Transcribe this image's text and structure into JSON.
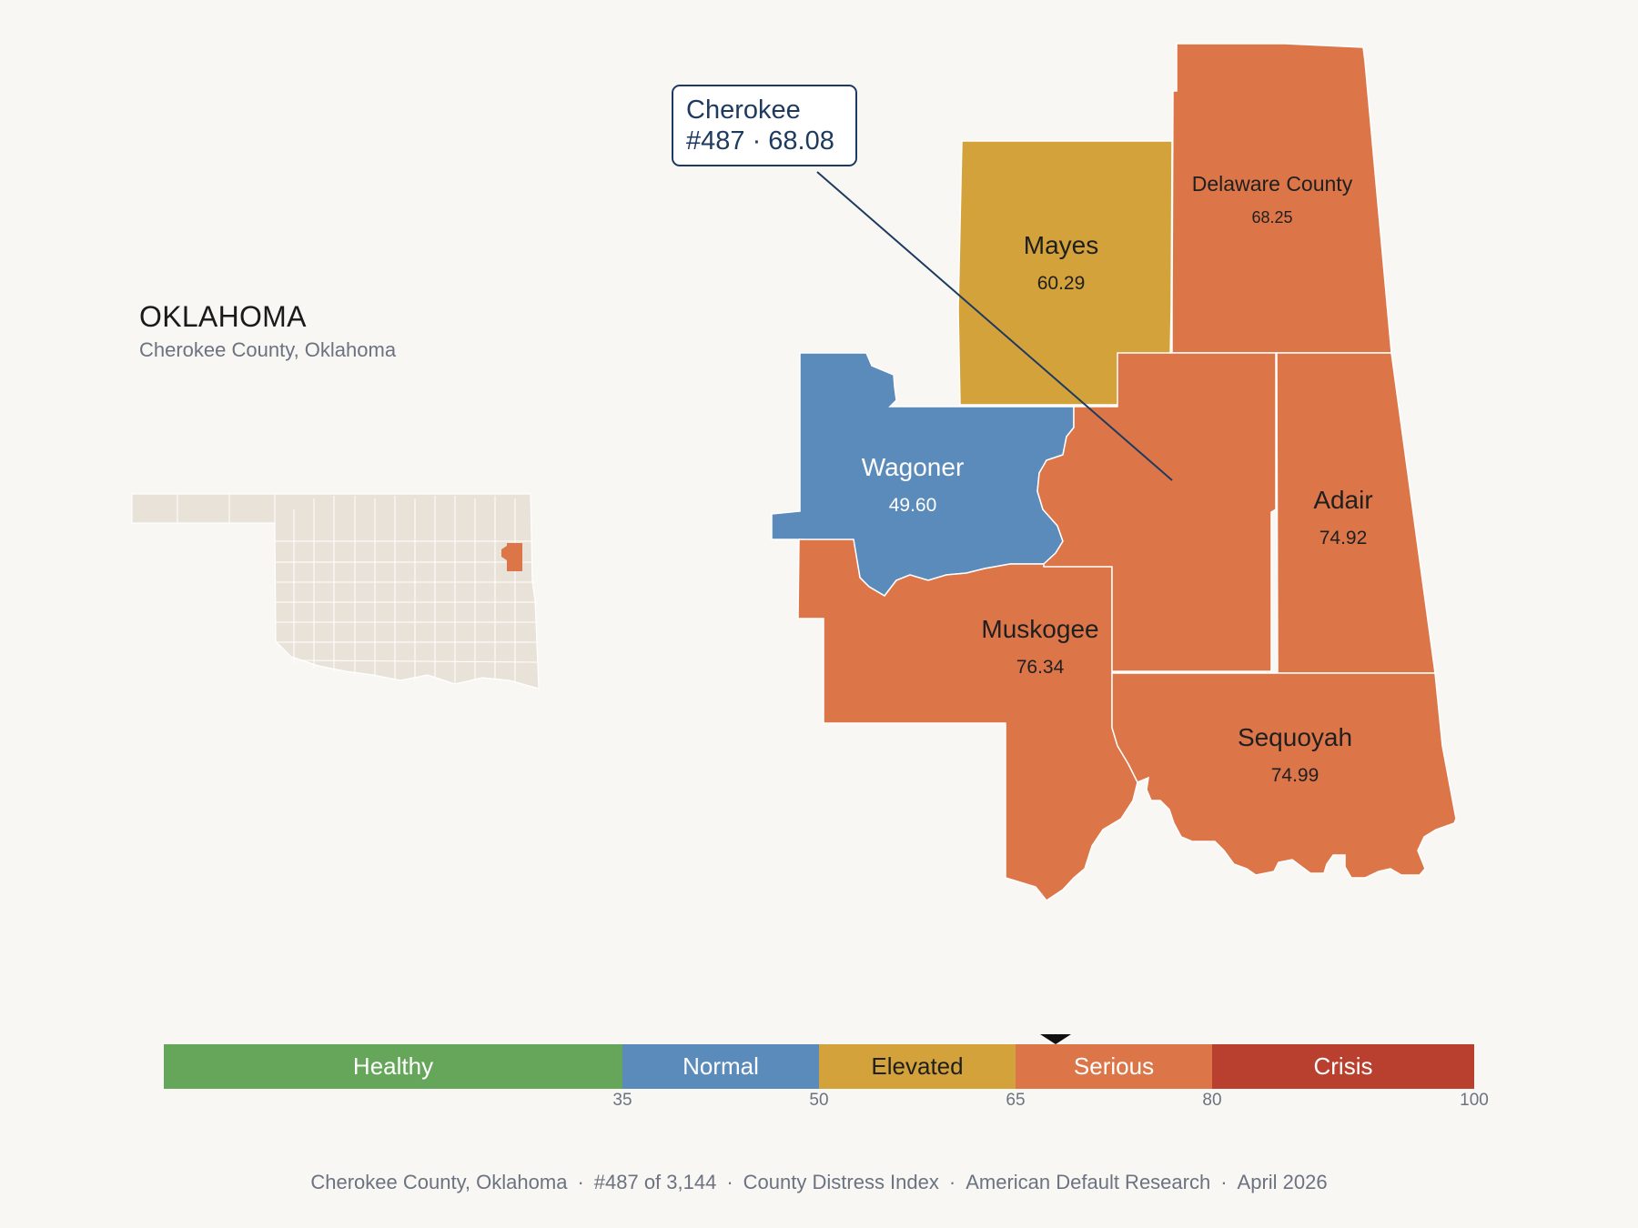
{
  "header": {
    "state": "OKLAHOMA",
    "subtitle": "Cherokee County, Oklahoma"
  },
  "callout": {
    "name": "Cherokee",
    "detail": "#487 · 68.08"
  },
  "counties": [
    {
      "name": "Cherokee",
      "value": "68.08",
      "category": "Serious",
      "highlighted": true
    },
    {
      "name": "Mayes",
      "value": "60.29",
      "category": "Elevated"
    },
    {
      "name": "Delaware County",
      "value": "68.25",
      "category": "Serious"
    },
    {
      "name": "Wagoner",
      "value": "49.60",
      "category": "Normal"
    },
    {
      "name": "Adair",
      "value": "74.92",
      "category": "Serious"
    },
    {
      "name": "Muskogee",
      "value": "76.34",
      "category": "Serious"
    },
    {
      "name": "Sequoyah",
      "value": "74.99",
      "category": "Serious"
    }
  ],
  "legend": {
    "segments": [
      {
        "label": "Healthy",
        "from": 0,
        "to": 35,
        "color": "#66a65a"
      },
      {
        "label": "Normal",
        "from": 35,
        "to": 50,
        "color": "#5b8bba"
      },
      {
        "label": "Elevated",
        "from": 50,
        "to": 65,
        "color": "#d4a23a"
      },
      {
        "label": "Serious",
        "from": 65,
        "to": 80,
        "color": "#dc7649"
      },
      {
        "label": "Crisis",
        "from": 80,
        "to": 100,
        "color": "#b9402e"
      }
    ],
    "ticks": [
      "35",
      "50",
      "65",
      "80",
      "100"
    ],
    "marker_value": 68.08
  },
  "colors": {
    "background": "#f9f7f4",
    "accent": "#1e3a5f",
    "inset_fill": "#e8e2d8",
    "inset_highlight": "#dc7649"
  },
  "footer": {
    "parts": [
      "Cherokee County, Oklahoma",
      "#487 of 3,144",
      "County Distress Index",
      "American Default Research",
      "April 2026"
    ]
  }
}
